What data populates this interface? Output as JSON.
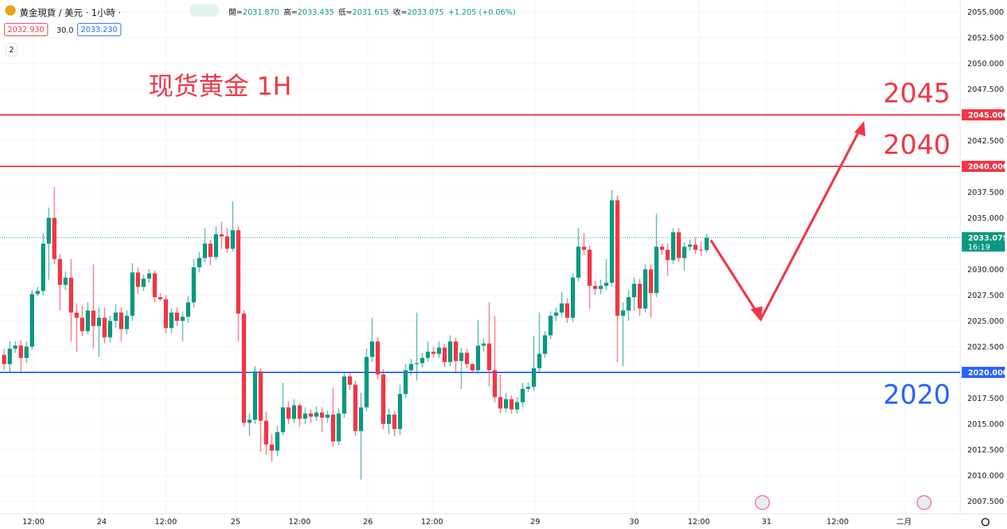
{
  "header": {
    "symbol": "黄金現貨 / 美元 · 1小時 ·",
    "ohlc": [
      {
        "label": "開=",
        "value": "2031.870"
      },
      {
        "label": "高=",
        "value": "2033.435"
      },
      {
        "label": "低=",
        "value": "2031.615"
      },
      {
        "label": "收=",
        "value": "2033.075"
      }
    ],
    "change": "+1.205 (+0.06%)",
    "bid": "2032.930",
    "spread": "30.0",
    "ask": "2033.230",
    "indicators": "2"
  },
  "chart_data": {
    "type": "candlestick",
    "title": "现货黄金 1H",
    "up_color": "#089981",
    "down_color": "#f23645",
    "open": [
      2021.7,
      2020.8,
      2022.3,
      2022.6,
      2021.4,
      2022.5,
      2027.6,
      2027.9,
      2032.5,
      2035.0,
      2031.0,
      2028.5,
      2029.2,
      2025.8,
      2025.3,
      2024.0,
      2026.0,
      2024.5,
      2025.3,
      2023.4,
      2025.0,
      2025.8,
      2024.2,
      2025.5,
      2029.7,
      2028.3,
      2029.1,
      2029.6,
      2027.3,
      2027.1,
      2024.3,
      2025.8,
      2025.0,
      2025.4,
      2026.8,
      2030.2,
      2031.1,
      2032.5,
      2031.2,
      2033.4,
      2033.2,
      2032.0,
      2033.8,
      2025.7,
      2015.1,
      2015.4,
      2020.1,
      2015.3,
      2013.0,
      2012.4,
      2014.2,
      2016.6,
      2015.5,
      2016.8,
      2015.5,
      2016.0,
      2015.7,
      2016.1,
      2015.6,
      2015.9,
      2013.3,
      2016.0,
      2019.6,
      2018.8,
      2014.3,
      2016.6,
      2021.5,
      2023.0,
      2019.8,
      2015.0,
      2015.9,
      2014.5,
      2017.9,
      2020.2,
      2020.8,
      2020.9,
      2021.4,
      2022.0,
      2021.8,
      2022.4,
      2021.0,
      2023.0,
      2021.1,
      2021.9,
      2020.8,
      2020.2,
      2022.6,
      2022.8,
      2020.2,
      2017.6,
      2016.5,
      2017.4,
      2016.4,
      2017.1,
      2018.4,
      2018.6,
      2020.4,
      2021.8,
      2023.6,
      2025.5,
      2025.8,
      2026.7,
      2025.3,
      2029.2,
      2032.2,
      2031.9,
      2028.4,
      2028.1,
      2028.4,
      2028.7,
      2036.7,
      2025.5,
      2026.0,
      2027.3,
      2028.6,
      2026.2,
      2030.0,
      2027.7,
      2032.2,
      2031.9,
      2030.9,
      2033.6,
      2031.1,
      2032.2,
      2032.4,
      2031.9,
      2031.87
    ],
    "high": [
      2022.3,
      2023.0,
      2023.0,
      2023.1,
      2023.0,
      2028.0,
      2028.3,
      2033.5,
      2036.0,
      2038.0,
      2031.5,
      2029.8,
      2031.0,
      2026.7,
      2026.5,
      2026.8,
      2030.5,
      2026.3,
      2026.3,
      2025.5,
      2026.6,
      2026.3,
      2026.0,
      2030.6,
      2030.2,
      2029.5,
      2030.0,
      2029.9,
      2027.7,
      2027.5,
      2026.2,
      2026.3,
      2025.9,
      2027.4,
      2031.0,
      2031.7,
      2034.0,
      2032.9,
      2034.2,
      2034.6,
      2034.0,
      2036.6,
      2034.2,
      2026.0,
      2016.0,
      2020.6,
      2020.4,
      2016.2,
      2014.0,
      2014.8,
      2019.0,
      2017.2,
      2017.4,
      2017.0,
      2016.6,
      2016.4,
      2016.7,
      2016.6,
      2016.3,
      2018.5,
      2016.5,
      2020.0,
      2020.0,
      2019.2,
      2018.0,
      2022.3,
      2025.3,
      2023.4,
      2020.3,
      2016.5,
      2016.2,
      2018.8,
      2020.8,
      2021.3,
      2025.8,
      2021.9,
      2023.0,
      2022.5,
      2023.0,
      2022.8,
      2023.6,
      2023.4,
      2022.4,
      2022.3,
      2020.9,
      2025.1,
      2023.3,
      2026.8,
      2025.5,
      2019.8,
      2018.0,
      2017.8,
      2017.6,
      2019.0,
      2019.0,
      2023.5,
      2025.8,
      2024.0,
      2025.9,
      2026.3,
      2027.8,
      2027.2,
      2029.6,
      2034.0,
      2033.5,
      2032.3,
      2028.9,
      2029.0,
      2031.0,
      2037.7,
      2037.2,
      2026.8,
      2028.0,
      2029.2,
      2029.1,
      2030.5,
      2030.5,
      2035.4,
      2032.5,
      2032.5,
      2034.0,
      2034.0,
      2032.6,
      2032.9,
      2033.1,
      2032.7,
      2033.435
    ],
    "low": [
      2020.2,
      2020.0,
      2021.9,
      2019.9,
      2020.9,
      2022.2,
      2027.4,
      2027.5,
      2029.0,
      2030.5,
      2026.0,
      2028.0,
      2023.0,
      2022.0,
      2023.5,
      2023.7,
      2022.3,
      2021.5,
      2022.8,
      2022.9,
      2024.3,
      2023.0,
      2023.7,
      2025.0,
      2027.6,
      2027.9,
      2028.7,
      2026.8,
      2026.9,
      2023.8,
      2023.8,
      2024.5,
      2023.0,
      2024.8,
      2026.3,
      2029.7,
      2030.7,
      2030.4,
      2030.9,
      2032.0,
      2031.6,
      2031.7,
      2023.0,
      2014.7,
      2013.8,
      2015.0,
      2012.3,
      2012.0,
      2011.3,
      2011.9,
      2013.9,
      2015.0,
      2015.1,
      2014.7,
      2015.0,
      2015.1,
      2015.3,
      2014.2,
      2015.1,
      2012.8,
      2012.9,
      2015.6,
      2018.3,
      2013.8,
      2009.6,
      2016.2,
      2021.0,
      2019.3,
      2014.5,
      2014.0,
      2013.8,
      2013.9,
      2017.5,
      2019.7,
      2019.2,
      2020.5,
      2021.0,
      2021.4,
      2021.4,
      2020.5,
      2020.6,
      2019.9,
      2018.4,
      2020.4,
      2019.9,
      2019.9,
      2022.0,
      2018.6,
      2017.1,
      2016.0,
      2016.1,
      2016.0,
      2016.0,
      2016.6,
      2018.1,
      2018.2,
      2020.0,
      2021.4,
      2023.2,
      2025.0,
      2025.3,
      2024.8,
      2024.9,
      2028.8,
      2031.4,
      2026.2,
      2027.5,
      2027.6,
      2028.0,
      2028.3,
      2021.0,
      2020.6,
      2025.0,
      2026.0,
      2025.5,
      2025.8,
      2025.3,
      2027.3,
      2031.4,
      2029.4,
      2030.5,
      2030.7,
      2029.9,
      2031.8,
      2031.5,
      2031.3,
      2031.615
    ],
    "close": [
      2020.8,
      2022.3,
      2022.6,
      2021.4,
      2022.5,
      2027.6,
      2027.9,
      2032.5,
      2035.0,
      2031.0,
      2028.5,
      2029.2,
      2025.8,
      2025.3,
      2024.0,
      2026.0,
      2024.5,
      2025.3,
      2023.4,
      2025.0,
      2025.8,
      2024.2,
      2025.5,
      2029.7,
      2028.3,
      2029.1,
      2029.6,
      2027.3,
      2027.1,
      2024.3,
      2025.8,
      2025.0,
      2025.4,
      2026.8,
      2030.2,
      2031.1,
      2032.5,
      2031.2,
      2033.4,
      2033.2,
      2032.0,
      2033.8,
      2025.7,
      2015.1,
      2015.4,
      2020.1,
      2015.3,
      2013.0,
      2012.4,
      2014.2,
      2016.6,
      2015.5,
      2016.8,
      2015.5,
      2016.0,
      2015.7,
      2016.1,
      2015.6,
      2015.9,
      2013.3,
      2016.0,
      2019.6,
      2018.8,
      2014.3,
      2016.6,
      2021.5,
      2023.0,
      2019.8,
      2015.0,
      2015.9,
      2014.5,
      2017.9,
      2020.2,
      2020.8,
      2020.9,
      2021.4,
      2022.0,
      2021.8,
      2022.4,
      2021.0,
      2023.0,
      2021.1,
      2021.9,
      2020.8,
      2020.2,
      2022.6,
      2022.8,
      2020.2,
      2017.6,
      2016.5,
      2017.4,
      2016.4,
      2017.1,
      2018.4,
      2018.6,
      2020.4,
      2021.8,
      2023.6,
      2025.5,
      2025.8,
      2026.7,
      2025.3,
      2029.2,
      2032.2,
      2031.9,
      2028.4,
      2028.1,
      2028.4,
      2028.7,
      2036.7,
      2025.5,
      2026.0,
      2027.3,
      2028.6,
      2026.2,
      2030.0,
      2027.7,
      2032.2,
      2031.9,
      2030.9,
      2033.6,
      2031.1,
      2032.2,
      2032.4,
      2031.9,
      2031.87,
      2033.075
    ],
    "xlim": [
      -0.75,
      171.5
    ],
    "xticks": [
      {
        "value": 5.25,
        "label": "12:00"
      },
      {
        "value": 17.5,
        "label": "24"
      },
      {
        "value": 29,
        "label": "12:00"
      },
      {
        "value": 41.5,
        "label": "25"
      },
      {
        "value": 53,
        "label": "12:00"
      },
      {
        "value": 65.25,
        "label": "26"
      },
      {
        "value": 76.75,
        "label": "12:00"
      },
      {
        "value": 95.25,
        "label": "29"
      },
      {
        "value": 113,
        "label": "30"
      },
      {
        "value": 124.6,
        "label": "12:00"
      },
      {
        "value": 136.75,
        "label": "31"
      },
      {
        "value": 149.5,
        "label": "12:00"
      },
      {
        "value": 161.4,
        "label": "二月"
      }
    ],
    "ylim": [
      2006.28,
      2056.15
    ],
    "yticks": [
      {
        "value": 2007.5,
        "label": "2007.500"
      },
      {
        "value": 2010,
        "label": "2010.000"
      },
      {
        "value": 2012.5,
        "label": "2012.500"
      },
      {
        "value": 2015,
        "label": "2015.000"
      },
      {
        "value": 2017.5,
        "label": "2017.500"
      },
      {
        "value": 2020,
        "label": "2020.000"
      },
      {
        "value": 2022.5,
        "label": "2022.500"
      },
      {
        "value": 2025,
        "label": "2025.000"
      },
      {
        "value": 2027.5,
        "label": "2027.500"
      },
      {
        "value": 2030,
        "label": "2030.000"
      },
      {
        "value": 2032.5,
        "label": "2032.500"
      },
      {
        "value": 2035,
        "label": "2035.000"
      },
      {
        "value": 2037.5,
        "label": "2037.500"
      },
      {
        "value": 2040,
        "label": "2040.000"
      },
      {
        "value": 2042.5,
        "label": "2042.500"
      },
      {
        "value": 2045,
        "label": "2045.000"
      },
      {
        "value": 2047.5,
        "label": "2047.500"
      },
      {
        "value": 2050,
        "label": "2050.000"
      },
      {
        "value": 2052.5,
        "label": "2052.500"
      },
      {
        "value": 2055,
        "label": "2055.000"
      }
    ],
    "grid": true,
    "levels": [
      {
        "value": 2045,
        "label": "2045",
        "badge": "2045.000",
        "color": "#f23645"
      },
      {
        "value": 2040,
        "label": "2040",
        "badge": "2040.000",
        "color": "#f23645"
      },
      {
        "value": 2020,
        "label": "2020",
        "badge": "2020.000",
        "color": "#2962ff"
      }
    ],
    "last_price": {
      "value": 2033.075,
      "label": "2033.075",
      "time": "16:19",
      "color": "#089981"
    }
  }
}
